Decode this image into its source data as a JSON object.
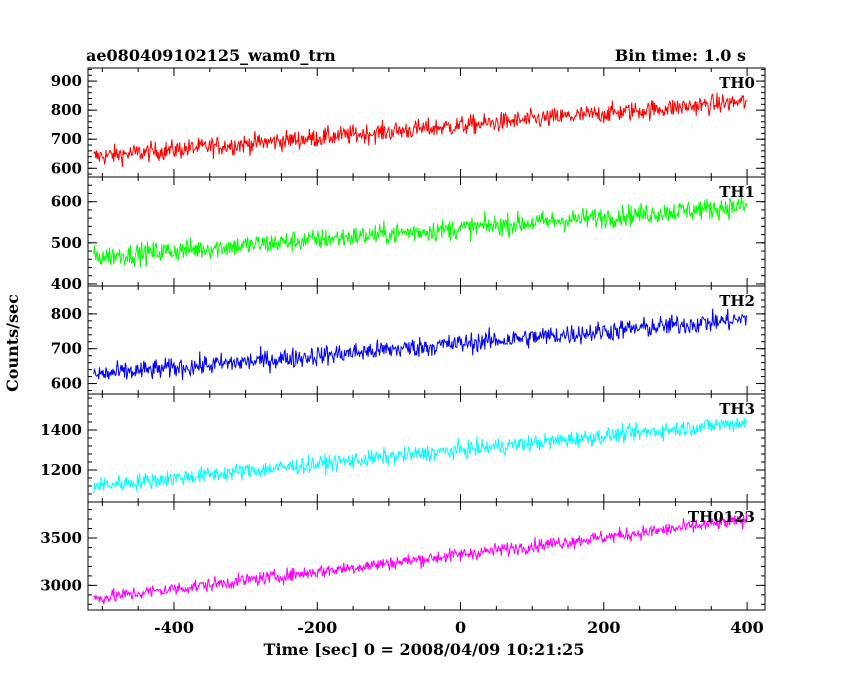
{
  "title": "ae080409102125_wam0_trn",
  "bin_time_label": "Bin time: 1.0 s",
  "xlabel": "Time [sec] 0 = 2008/04/09 10:21:25",
  "ylabel": "Counts/sec",
  "chart_data": {
    "type": "line",
    "x_range": [
      -512,
      400
    ],
    "xlim": [
      -520,
      425
    ],
    "x_ticks": [
      -400,
      -200,
      0,
      200,
      400
    ],
    "bin_time_s": 1.0,
    "panels": [
      {
        "name": "TH0",
        "color": "#ff0000",
        "ylim": [
          570,
          945
        ],
        "y_ticks": [
          600,
          700,
          800,
          900
        ],
        "start": 640,
        "end": 830,
        "noise": 32
      },
      {
        "name": "TH1",
        "color": "#00ff00",
        "ylim": [
          395,
          660
        ],
        "y_ticks": [
          400,
          500,
          600
        ],
        "start": 465,
        "end": 590,
        "noise": 25
      },
      {
        "name": "TH2",
        "color": "#0000ff",
        "ylim": [
          570,
          880
        ],
        "y_ticks": [
          600,
          700,
          800
        ],
        "start": 625,
        "end": 785,
        "noise": 28
      },
      {
        "name": "TH3",
        "color": "#00ffff",
        "ylim": [
          1040,
          1580
        ],
        "y_ticks": [
          1200,
          1400
        ],
        "start": 1120,
        "end": 1440,
        "noise": 40
      },
      {
        "name": "TH0123",
        "color": "#ff00ff",
        "ylim": [
          2740,
          3880
        ],
        "y_ticks": [
          3000,
          3500
        ],
        "start": 2860,
        "end": 3690,
        "noise": 70
      }
    ]
  }
}
